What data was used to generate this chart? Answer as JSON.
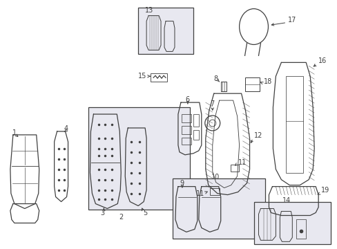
{
  "bg_color": "#ffffff",
  "line_color": "#404040",
  "box_bg": "#e8e8f0",
  "figsize": [
    4.89,
    3.6
  ],
  "dpi": 100
}
